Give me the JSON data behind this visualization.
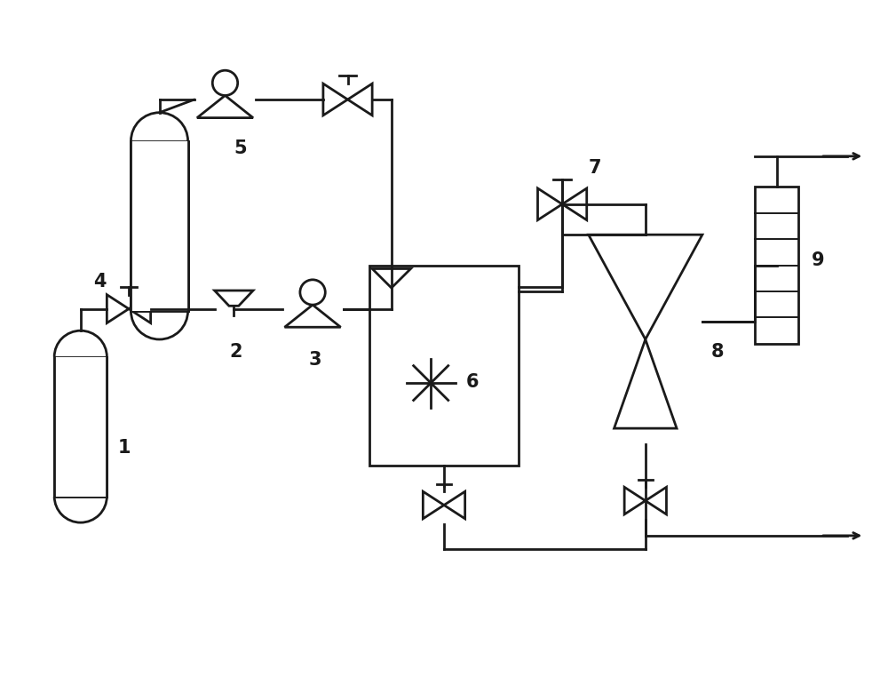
{
  "bg_color": "#ffffff",
  "line_color": "#1a1a1a",
  "line_width": 2.0,
  "label_fontsize": 15,
  "label_color": "#1a1a1a"
}
